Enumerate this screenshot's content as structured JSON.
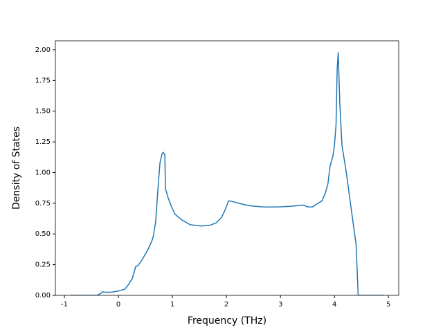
{
  "chart_data": {
    "type": "line",
    "xlabel": "Frequency (THz)",
    "ylabel": "Density of States",
    "xlim": [
      -1.167,
      5.19
    ],
    "ylim": [
      0,
      2.073
    ],
    "xticks": [
      -1,
      0,
      1,
      2,
      3,
      4,
      5
    ],
    "yticks": [
      {
        "value": 0,
        "label": "0.00"
      },
      {
        "value": 0.25,
        "label": "0.25"
      },
      {
        "value": 0.5,
        "label": "0.50"
      },
      {
        "value": 0.75,
        "label": "0.75"
      },
      {
        "value": 1,
        "label": "1.00"
      },
      {
        "value": 1.25,
        "label": "1.25"
      },
      {
        "value": 1.5,
        "label": "1.50"
      },
      {
        "value": 1.75,
        "label": "1.75"
      },
      {
        "value": 2,
        "label": "2.00"
      }
    ],
    "grid": false,
    "series": [
      {
        "color": "#1f77b4",
        "x": [
          -0.885,
          -0.4,
          -0.33,
          -0.29,
          -0.24,
          -0.14,
          0,
          0.12,
          0.19,
          0.26,
          0.32,
          0.36,
          0.44,
          0.55,
          0.63,
          0.65,
          0.69,
          0.73,
          0.77,
          0.81,
          0.83,
          0.86,
          0.87,
          0.92,
          0.99,
          1.05,
          1.17,
          1.33,
          1.53,
          1.69,
          1.81,
          1.91,
          1.97,
          2.04,
          2.1,
          2.23,
          2.42,
          2.68,
          2.94,
          3.19,
          3.42,
          3.51,
          3.59,
          3.68,
          3.77,
          3.83,
          3.88,
          3.92,
          3.97,
          4.0,
          4.03,
          4.05,
          4.07,
          4.08,
          4.1,
          4.14,
          4.22,
          4.29,
          4.36,
          4.4,
          4.44,
          4.92
        ],
        "values": [
          0,
          0,
          0.015,
          0.03,
          0.025,
          0.025,
          0.035,
          0.05,
          0.09,
          0.14,
          0.235,
          0.24,
          0.29,
          0.375,
          0.455,
          0.49,
          0.6,
          0.855,
          1.08,
          1.155,
          1.165,
          1.145,
          0.87,
          0.795,
          0.715,
          0.66,
          0.615,
          0.575,
          0.565,
          0.57,
          0.59,
          0.635,
          0.69,
          0.77,
          0.765,
          0.75,
          0.73,
          0.72,
          0.72,
          0.725,
          0.735,
          0.72,
          0.72,
          0.745,
          0.77,
          0.83,
          0.91,
          1.055,
          1.13,
          1.22,
          1.39,
          1.84,
          1.98,
          1.84,
          1.56,
          1.22,
          1.0,
          0.77,
          0.545,
          0.42,
          0,
          0
        ]
      }
    ]
  }
}
